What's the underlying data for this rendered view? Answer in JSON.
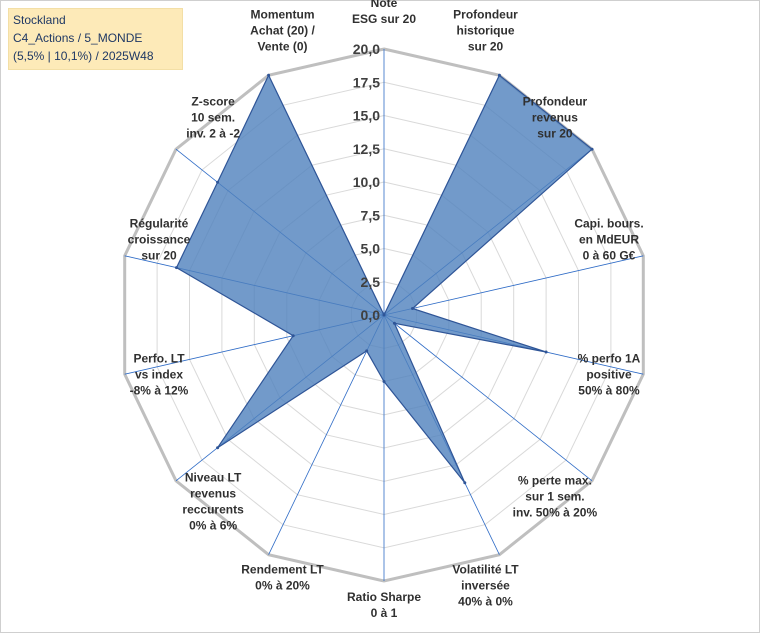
{
  "header": {
    "line1": "Stockland",
    "line2": "C4_Actions / 5_MONDE",
    "line3": "(5,5% | 10,1%) / 2025W48"
  },
  "chart_data": {
    "type": "radar",
    "axes": [
      [
        "Note",
        "ESG sur 20"
      ],
      [
        "Profondeur",
        "historique",
        "sur 20"
      ],
      [
        "Profondeur",
        "revenus",
        "sur 20"
      ],
      [
        "Capi. bours.",
        "en MdEUR",
        "0 à 60 G€"
      ],
      [
        "% perfo 1A",
        "positive",
        "50% à 80%"
      ],
      [
        "% perte max.",
        "sur 1 sem.",
        "inv. 50% à 20%"
      ],
      [
        "Volatilité LT",
        "inversée",
        "40% à 0%"
      ],
      [
        "Ratio Sharpe",
        "0 à 1"
      ],
      [
        "Rendement LT",
        "0% à 20%"
      ],
      [
        "Niveau LT",
        "revenus",
        "reccurents",
        "0% à 6%"
      ],
      [
        "Perfo. LT",
        "vs index",
        "-8% à 12%"
      ],
      [
        "Régularité",
        "croissance",
        "sur 20"
      ],
      [
        "Z-score",
        "10 sem.",
        "inv. 2 à -2"
      ],
      [
        "Momentum",
        "Achat (20) /",
        "Vente (0)"
      ]
    ],
    "values": [
      0,
      20,
      20,
      2.2,
      12.5,
      1,
      14,
      5,
      3,
      16,
      7,
      16,
      16,
      20
    ],
    "ylim": [
      0,
      20
    ],
    "ticks": [
      "0,0",
      "2,5",
      "5,0",
      "7,5",
      "10,0",
      "12,5",
      "15,0",
      "17,5",
      "20,0"
    ],
    "colors": {
      "fill": "#4f81bd",
      "stroke": "#2f5597",
      "grid": "#d9d9d9",
      "outer": "#bfbfbf",
      "spoke": "#2e6bc6"
    }
  }
}
